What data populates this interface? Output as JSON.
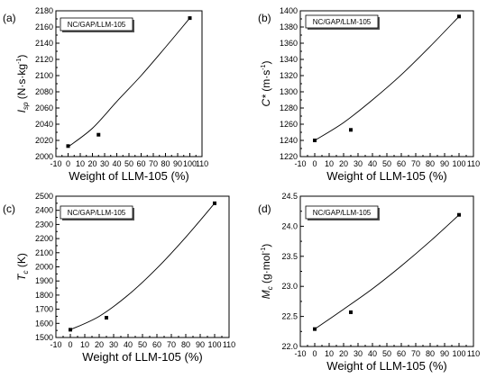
{
  "chart_data": [
    {
      "type": "scatter",
      "panel_label": "(a)",
      "legend": "NC/GAP/LLM-105",
      "xlabel": "Weight of LLM-105 (%)",
      "ylabel": {
        "main": "I",
        "sub": "sp",
        "unit_pre": " (N·s·kg",
        "sup": "-1",
        "unit_post": ")"
      },
      "xlim": [
        -10,
        110
      ],
      "xticks": [
        -10,
        0,
        10,
        20,
        30,
        40,
        50,
        60,
        70,
        80,
        90,
        100,
        110
      ],
      "ylim": [
        2000,
        2180
      ],
      "yticks": [
        2000,
        2020,
        2040,
        2060,
        2080,
        2100,
        2120,
        2140,
        2160,
        2180
      ],
      "points": [
        {
          "x": 0,
          "y": 2013
        },
        {
          "x": 25,
          "y": 2027
        },
        {
          "x": 100,
          "y": 2171
        }
      ],
      "fit": [
        {
          "x": 0,
          "y": 2012
        },
        {
          "x": 20,
          "y": 2035
        },
        {
          "x": 40,
          "y": 2068
        },
        {
          "x": 60,
          "y": 2100
        },
        {
          "x": 80,
          "y": 2135
        },
        {
          "x": 100,
          "y": 2171
        }
      ]
    },
    {
      "type": "scatter",
      "panel_label": "(b)",
      "legend": "NC/GAP/LLM-105",
      "xlabel": "Weight of LLM-105 (%)",
      "ylabel": {
        "main": "C*",
        "sub": "",
        "unit_pre": " (m·s",
        "sup": "-1",
        "unit_post": ")"
      },
      "xlim": [
        -10,
        110
      ],
      "xticks": [
        -10,
        0,
        10,
        20,
        30,
        40,
        50,
        60,
        70,
        80,
        90,
        100,
        110
      ],
      "ylim": [
        1220,
        1400
      ],
      "yticks": [
        1220,
        1240,
        1260,
        1280,
        1300,
        1320,
        1340,
        1360,
        1380,
        1400
      ],
      "points": [
        {
          "x": 0,
          "y": 1240
        },
        {
          "x": 25,
          "y": 1253
        },
        {
          "x": 100,
          "y": 1393
        }
      ],
      "fit": [
        {
          "x": 0,
          "y": 1240
        },
        {
          "x": 20,
          "y": 1262
        },
        {
          "x": 40,
          "y": 1290
        },
        {
          "x": 60,
          "y": 1321
        },
        {
          "x": 80,
          "y": 1356
        },
        {
          "x": 100,
          "y": 1393
        }
      ]
    },
    {
      "type": "scatter",
      "panel_label": "(c)",
      "legend": "NC/GAP/LLM-105",
      "xlabel": "Weight of LLM-105 (%)",
      "ylabel": {
        "main": "T",
        "sub": "c",
        "unit_pre": " (K)",
        "sup": "",
        "unit_post": ""
      },
      "xlim": [
        -10,
        110
      ],
      "xticks": [
        -10,
        0,
        10,
        20,
        30,
        40,
        50,
        60,
        70,
        80,
        90,
        100,
        110
      ],
      "ylim": [
        1500,
        2500
      ],
      "yticks": [
        1500,
        1600,
        1700,
        1800,
        1900,
        2000,
        2100,
        2200,
        2300,
        2400,
        2500
      ],
      "points": [
        {
          "x": 0,
          "y": 1555
        },
        {
          "x": 25,
          "y": 1640
        },
        {
          "x": 100,
          "y": 2450
        }
      ],
      "fit": [
        {
          "x": 0,
          "y": 1555
        },
        {
          "x": 20,
          "y": 1650
        },
        {
          "x": 40,
          "y": 1800
        },
        {
          "x": 60,
          "y": 1990
        },
        {
          "x": 80,
          "y": 2210
        },
        {
          "x": 100,
          "y": 2450
        }
      ]
    },
    {
      "type": "scatter",
      "panel_label": "(d)",
      "legend": "NC/GAP/LLM-105",
      "xlabel": "Weight of LLM-105 (%)",
      "ylabel": {
        "main": "M",
        "sub": "c",
        "unit_pre": " (g·mol",
        "sup": "-1",
        "unit_post": ")"
      },
      "xlim": [
        -10,
        110
      ],
      "xticks": [
        -10,
        0,
        10,
        20,
        30,
        40,
        50,
        60,
        70,
        80,
        90,
        100,
        110
      ],
      "ylim": [
        22.0,
        24.5
      ],
      "yticks": [
        22.0,
        22.5,
        23.0,
        23.5,
        24.0,
        24.5
      ],
      "points": [
        {
          "x": 0,
          "y": 22.29
        },
        {
          "x": 25,
          "y": 22.57
        },
        {
          "x": 100,
          "y": 24.19
        }
      ],
      "fit": [
        {
          "x": 0,
          "y": 22.29
        },
        {
          "x": 20,
          "y": 22.62
        },
        {
          "x": 40,
          "y": 22.96
        },
        {
          "x": 60,
          "y": 23.34
        },
        {
          "x": 80,
          "y": 23.75
        },
        {
          "x": 100,
          "y": 24.19
        }
      ]
    }
  ]
}
